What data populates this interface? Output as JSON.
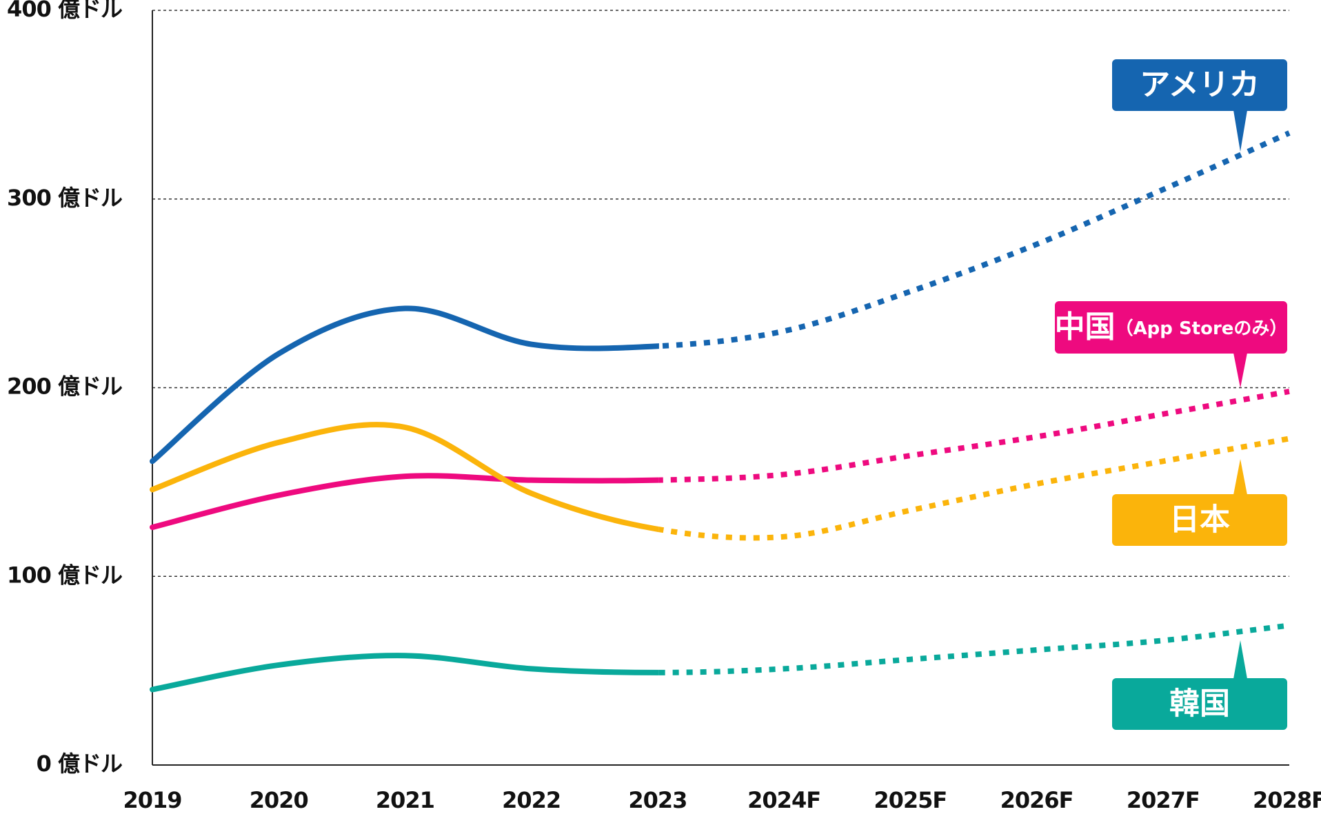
{
  "chart_data": {
    "type": "line",
    "categories": [
      "2019",
      "2020",
      "2021",
      "2022",
      "2023",
      "2024F",
      "2025F",
      "2026F",
      "2027F",
      "2028F"
    ],
    "series": [
      {
        "name": "アメリカ",
        "color": "#1565b0",
        "values": [
          161,
          218,
          242,
          223,
          222,
          230,
          251,
          276,
          305,
          335
        ]
      },
      {
        "name": "中国（App Storeのみ）",
        "color": "#ee0a7f",
        "values": [
          126,
          143,
          153,
          151,
          151,
          154,
          164,
          174,
          186,
          198
        ]
      },
      {
        "name": "日本",
        "color": "#fbb40b",
        "values": [
          146,
          171,
          179,
          144,
          125,
          121,
          135,
          149,
          161,
          173
        ]
      },
      {
        "name": "韓国",
        "color": "#09a99b",
        "values": [
          40,
          53,
          58,
          51,
          49,
          51,
          56,
          61,
          66,
          74
        ]
      }
    ],
    "ylim": [
      0,
      400
    ],
    "yticks": [
      {
        "value": 0,
        "label": "0 億ドル"
      },
      {
        "value": 100,
        "label": "100 億ドル"
      },
      {
        "value": 200,
        "label": "200 億ドル"
      },
      {
        "value": 300,
        "label": "300 億ドル"
      },
      {
        "value": 400,
        "label": "400 億ドル"
      }
    ],
    "grid": true
  }
}
